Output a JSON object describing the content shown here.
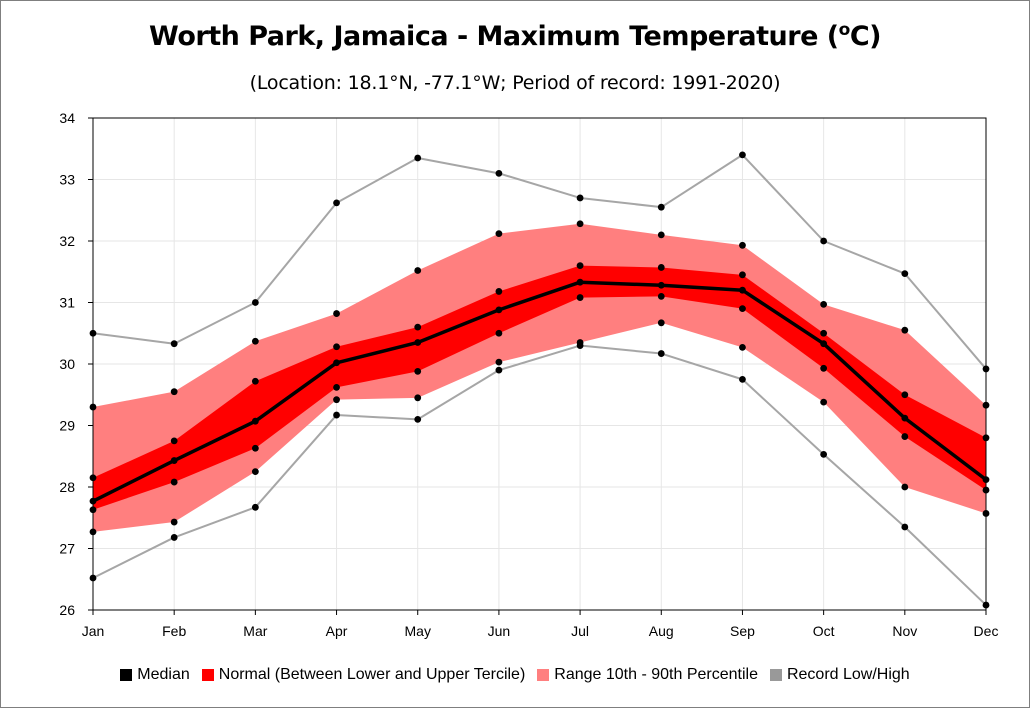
{
  "chart_data": {
    "type": "line",
    "title": "Worth Park, Jamaica - Maximum Temperature (",
    "title_sup": "o",
    "title_end": "C)",
    "subtitle": "(Location: 18.1°N, -77.1°W; Period of record: 1991-2020)",
    "categories": [
      "Jan",
      "Feb",
      "Mar",
      "Apr",
      "May",
      "Jun",
      "Jul",
      "Aug",
      "Sep",
      "Oct",
      "Nov",
      "Dec"
    ],
    "ylim": [
      26,
      34
    ],
    "yticks": [
      "26",
      "27",
      "28",
      "29",
      "30",
      "31",
      "32",
      "33",
      "34"
    ],
    "grid": true,
    "legend_position": "bottom",
    "series": {
      "record_high": [
        30.5,
        30.33,
        31.0,
        32.62,
        33.35,
        33.1,
        32.7,
        32.55,
        33.4,
        32.0,
        31.47,
        29.92
      ],
      "record_low": [
        26.52,
        27.18,
        27.67,
        29.17,
        29.1,
        29.9,
        30.3,
        30.17,
        29.75,
        28.53,
        27.35,
        26.08
      ],
      "p90": [
        29.3,
        29.55,
        30.37,
        30.82,
        31.52,
        32.12,
        32.28,
        32.1,
        31.93,
        30.97,
        30.55,
        29.33
      ],
      "p10": [
        27.27,
        27.43,
        28.25,
        29.42,
        29.45,
        30.03,
        30.35,
        30.67,
        30.27,
        29.38,
        28.0,
        27.57
      ],
      "upper_tercile": [
        28.15,
        28.75,
        29.72,
        30.28,
        30.6,
        31.18,
        31.6,
        31.57,
        31.45,
        30.5,
        29.5,
        28.8
      ],
      "lower_tercile": [
        27.63,
        28.08,
        28.63,
        29.62,
        29.88,
        30.5,
        31.08,
        31.1,
        30.9,
        29.93,
        28.82,
        27.95
      ],
      "median": [
        27.77,
        28.43,
        29.07,
        30.02,
        30.35,
        30.88,
        31.33,
        31.28,
        31.2,
        30.33,
        29.12,
        28.12
      ]
    },
    "legend": [
      {
        "key": "median",
        "label": "Median",
        "color": "#000000"
      },
      {
        "key": "normal",
        "label": "Normal (Between Lower and Upper Tercile)",
        "color": "#ff0000"
      },
      {
        "key": "range",
        "label": "Range 10th - 90th Percentile",
        "color": "#ff7f7f"
      },
      {
        "key": "record",
        "label": "Record Low/High",
        "color": "#999999"
      }
    ],
    "colors": {
      "range": "#ff7f7f",
      "normal": "#ff0000",
      "median": "#000000",
      "record": "#a6a6a6",
      "grid": "#e6e6e6",
      "axis": "#000000"
    }
  }
}
